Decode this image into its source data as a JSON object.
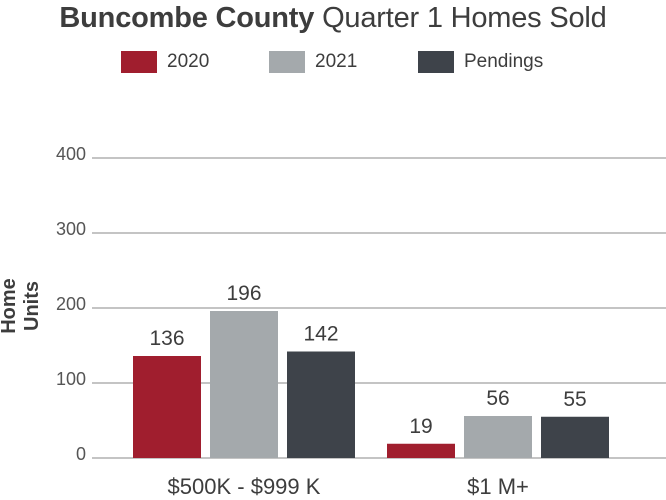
{
  "title": {
    "bold": "Buncombe County",
    "rest": "Quarter 1 Homes Sold"
  },
  "chart_data": {
    "type": "bar",
    "title": "Buncombe County Quarter 1 Homes Sold",
    "xlabel": "",
    "ylabel": "Home Units",
    "categories": [
      "$500K - $999 K",
      "$1 M+"
    ],
    "series": [
      {
        "name": "2020",
        "color": "#a01e2e",
        "values": [
          136,
          19
        ]
      },
      {
        "name": "2021",
        "color": "#a4a9ac",
        "values": [
          196,
          56
        ]
      },
      {
        "name": "Pendings",
        "color": "#3e434a",
        "values": [
          142,
          55
        ]
      }
    ],
    "ylim": [
      0,
      400
    ],
    "yticks": [
      "0",
      "100",
      "200",
      "300",
      "400"
    ],
    "grid": true,
    "legend_position": "top"
  }
}
